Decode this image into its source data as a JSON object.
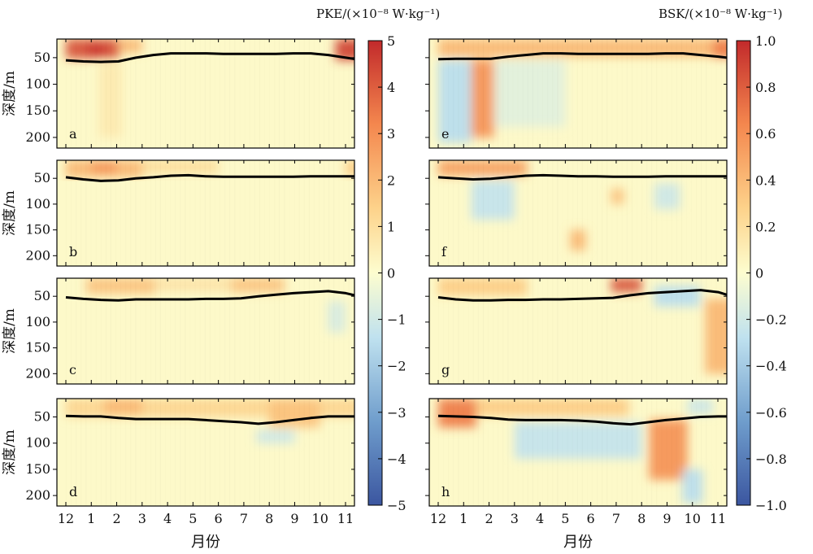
{
  "chart_data": {
    "type": "heatmap",
    "x_axis": {
      "label": "月份",
      "ticks": [
        "12",
        "1",
        "2",
        "3",
        "4",
        "5",
        "6",
        "7",
        "8",
        "9",
        "10",
        "11"
      ]
    },
    "y_axis": {
      "label": "深度/m",
      "ticks": [
        "50",
        "100",
        "150",
        "200"
      ],
      "range": [
        15,
        220
      ],
      "inverted": true
    },
    "colorbars": [
      {
        "title": "PKE/(×10⁻⁸ W·kg⁻¹)",
        "range": [
          -5,
          5
        ],
        "ticks": [
          "5",
          "4",
          "3",
          "2",
          "1",
          "0",
          "−1",
          "−2",
          "−3",
          "−4",
          "−5"
        ]
      },
      {
        "title": "BSK/(×10⁻⁸ W·kg⁻¹)",
        "range": [
          -1.0,
          1.0
        ],
        "ticks": [
          "1.0",
          "0.8",
          "0.6",
          "0.4",
          "0.2",
          "0",
          "−0.2",
          "−0.4",
          "−0.6",
          "−0.8",
          "−1.0"
        ]
      }
    ],
    "colormap": [
      "#3b56a0",
      "#6f9dcc",
      "#bfe1ef",
      "#fdfdcf",
      "#fdd28a",
      "#f4874e",
      "#c22a2b"
    ],
    "panels": [
      {
        "id": "a",
        "variable": "PKE",
        "mld": [
          55,
          57,
          58,
          57,
          50,
          45,
          42,
          42,
          42,
          43,
          43,
          43,
          43,
          42,
          42,
          45,
          50,
          55
        ],
        "blobs": [
          {
            "m": 0.0,
            "m2": 2.1,
            "d": 15,
            "d2": 52,
            "v": 0.85
          },
          {
            "m": 0.8,
            "m2": 1.6,
            "d": 25,
            "d2": 45,
            "v": 0.95
          },
          {
            "m": 10.6,
            "m2": 11.7,
            "d": 15,
            "d2": 55,
            "v": 0.9
          },
          {
            "m": 2.1,
            "m2": 3.0,
            "d": 15,
            "d2": 40,
            "v": 0.45
          },
          {
            "m": 1.3,
            "m2": 2.2,
            "d": 60,
            "d2": 200,
            "v": 0.15
          }
        ]
      },
      {
        "id": "b",
        "variable": "PKE",
        "mld": [
          48,
          52,
          55,
          54,
          50,
          48,
          45,
          44,
          46,
          47,
          47,
          47,
          47,
          47,
          46,
          46,
          46,
          46
        ],
        "blobs": [
          {
            "m": 0.0,
            "m2": 3.0,
            "d": 15,
            "d2": 48,
            "v": 0.45
          },
          {
            "m": 1.0,
            "m2": 2.0,
            "d": 18,
            "d2": 40,
            "v": 0.6
          },
          {
            "m": 3.0,
            "m2": 6.0,
            "d": 15,
            "d2": 40,
            "v": 0.25
          },
          {
            "m": 11.0,
            "m2": 11.7,
            "d": 15,
            "d2": 45,
            "v": 0.35
          }
        ]
      },
      {
        "id": "c",
        "variable": "PKE",
        "mld": [
          52,
          55,
          57,
          58,
          56,
          56,
          56,
          56,
          55,
          55,
          54,
          50,
          47,
          44,
          42,
          40,
          44,
          52
        ],
        "blobs": [
          {
            "m": 0.8,
            "m2": 3.5,
            "d": 15,
            "d2": 45,
            "v": 0.4
          },
          {
            "m": 6.5,
            "m2": 8.6,
            "d": 15,
            "d2": 42,
            "v": 0.4
          },
          {
            "m": 3.5,
            "m2": 6.5,
            "d": 15,
            "d2": 40,
            "v": 0.2
          },
          {
            "m": 10.3,
            "m2": 11.0,
            "d": 60,
            "d2": 120,
            "v": -0.2
          }
        ]
      },
      {
        "id": "d",
        "variable": "PKE",
        "mld": [
          48,
          49,
          49,
          52,
          54,
          54,
          54,
          54,
          56,
          58,
          60,
          63,
          60,
          56,
          52,
          49,
          49,
          49
        ],
        "blobs": [
          {
            "m": 0.0,
            "m2": 11.7,
            "d": 15,
            "d2": 50,
            "v": 0.3
          },
          {
            "m": 1.5,
            "m2": 3.0,
            "d": 15,
            "d2": 45,
            "v": 0.45
          },
          {
            "m": 8.0,
            "m2": 10.0,
            "d": 15,
            "d2": 70,
            "v": 0.4
          },
          {
            "m": 7.5,
            "m2": 9.0,
            "d": 75,
            "d2": 100,
            "v": -0.25
          }
        ]
      },
      {
        "id": "e",
        "variable": "BSK",
        "mld": [
          53,
          52,
          52,
          52,
          48,
          45,
          42,
          42,
          43,
          43,
          43,
          43,
          43,
          42,
          42,
          45,
          48,
          52
        ],
        "blobs": [
          {
            "m": 0.0,
            "m2": 11.7,
            "d": 15,
            "d2": 48,
            "v": 0.45
          },
          {
            "m": 1.3,
            "m2": 2.2,
            "d": 55,
            "d2": 200,
            "v": 0.6
          },
          {
            "m": 0.0,
            "m2": 1.3,
            "d": 55,
            "d2": 210,
            "v": -0.35
          },
          {
            "m": 2.2,
            "m2": 5.0,
            "d": 55,
            "d2": 180,
            "v": -0.15
          },
          {
            "m": 10.8,
            "m2": 11.7,
            "d": 15,
            "d2": 50,
            "v": 0.7
          }
        ]
      },
      {
        "id": "f",
        "variable": "BSK",
        "mld": [
          48,
          50,
          52,
          51,
          48,
          45,
          44,
          45,
          46,
          46,
          47,
          47,
          47,
          46,
          46,
          46,
          46,
          46
        ],
        "blobs": [
          {
            "m": 0.0,
            "m2": 3.5,
            "d": 15,
            "d2": 45,
            "v": 0.55
          },
          {
            "m": 1.3,
            "m2": 3.0,
            "d": 55,
            "d2": 130,
            "v": -0.3
          },
          {
            "m": 5.2,
            "m2": 5.8,
            "d": 150,
            "d2": 190,
            "v": 0.45
          },
          {
            "m": 6.8,
            "m2": 7.3,
            "d": 70,
            "d2": 100,
            "v": 0.4
          },
          {
            "m": 8.5,
            "m2": 9.5,
            "d": 60,
            "d2": 110,
            "v": -0.25
          }
        ]
      },
      {
        "id": "g",
        "variable": "BSK",
        "mld": [
          52,
          56,
          58,
          58,
          57,
          57,
          56,
          56,
          55,
          54,
          53,
          48,
          44,
          42,
          40,
          38,
          42,
          52
        ],
        "blobs": [
          {
            "m": 0.0,
            "m2": 3.5,
            "d": 15,
            "d2": 48,
            "v": 0.35
          },
          {
            "m": 6.8,
            "m2": 8.0,
            "d": 15,
            "d2": 42,
            "v": 0.85
          },
          {
            "m": 8.5,
            "m2": 10.3,
            "d": 30,
            "d2": 70,
            "v": -0.35
          },
          {
            "m": 10.5,
            "m2": 11.7,
            "d": 55,
            "d2": 200,
            "v": 0.45
          }
        ]
      },
      {
        "id": "h",
        "variable": "BSK",
        "mld": [
          48,
          49,
          50,
          52,
          55,
          56,
          56,
          56,
          57,
          59,
          62,
          64,
          60,
          56,
          53,
          50,
          49,
          49
        ],
        "blobs": [
          {
            "m": 0.0,
            "m2": 1.5,
            "d": 15,
            "d2": 70,
            "v": 0.7
          },
          {
            "m": 1.5,
            "m2": 7.5,
            "d": 15,
            "d2": 48,
            "v": 0.35
          },
          {
            "m": 3.0,
            "m2": 8.0,
            "d": 60,
            "d2": 130,
            "v": -0.3
          },
          {
            "m": 8.3,
            "m2": 9.8,
            "d": 55,
            "d2": 170,
            "v": 0.6
          },
          {
            "m": 9.8,
            "m2": 10.8,
            "d": 15,
            "d2": 45,
            "v": -0.25
          },
          {
            "m": 9.6,
            "m2": 10.4,
            "d": 150,
            "d2": 215,
            "v": -0.35
          }
        ]
      }
    ]
  }
}
